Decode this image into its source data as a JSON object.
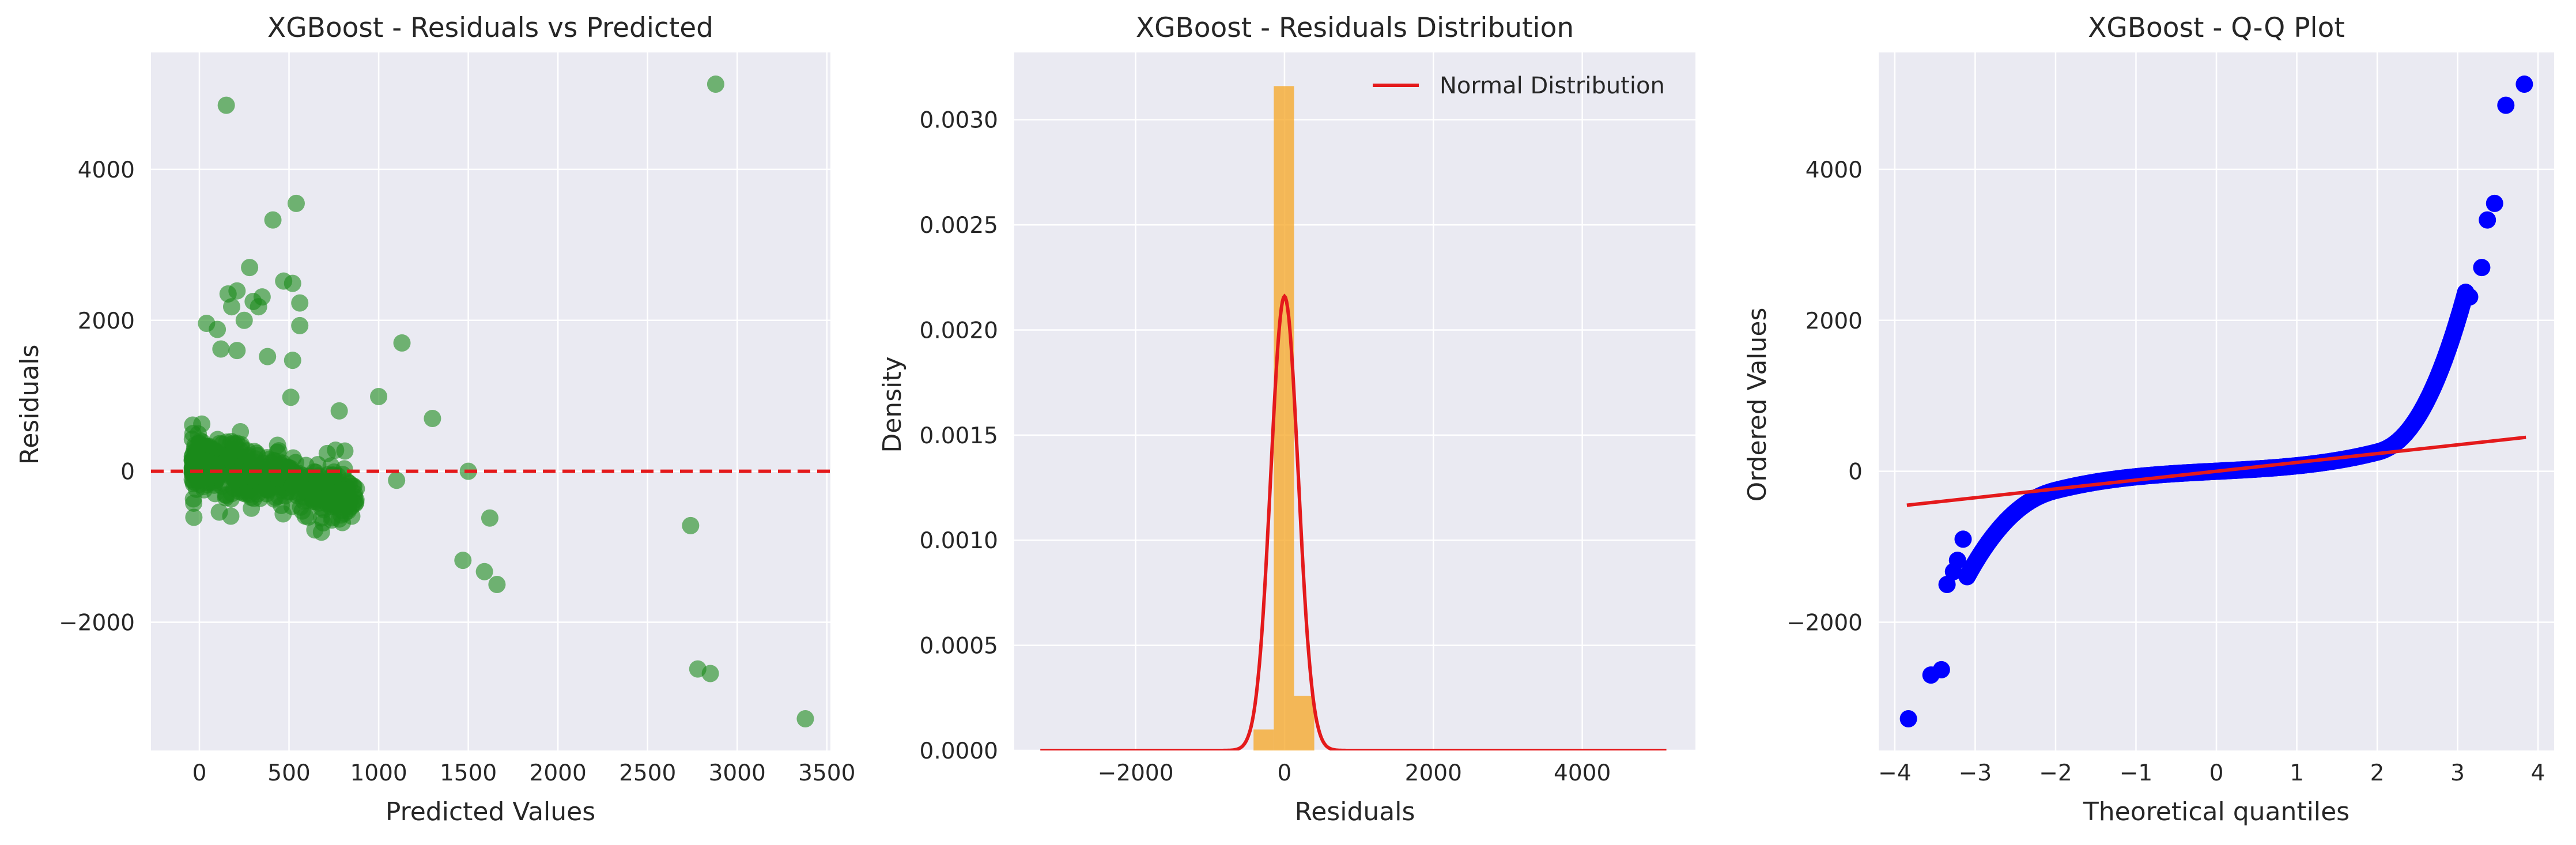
{
  "chart_data": [
    {
      "type": "scatter",
      "title": "XGBoost - Residuals vs Predicted",
      "xlabel": "Predicted Values",
      "ylabel": "Residuals",
      "xlim": [
        -270,
        3520
      ],
      "ylim": [
        -3700,
        5550
      ],
      "xticks": [
        0,
        500,
        1000,
        1500,
        2000,
        2500,
        3000,
        3500
      ],
      "yticks": [
        -2000,
        0,
        2000,
        4000
      ],
      "grid": true,
      "colors": {
        "points": "#1a8a1a",
        "reference_line": "#e41a1c",
        "background": "#eaeaf2"
      },
      "reference_line": {
        "y": 0,
        "style": "dashed"
      },
      "outliers": [
        {
          "x": 150,
          "y": 4850
        },
        {
          "x": 2880,
          "y": 5130
        },
        {
          "x": 540,
          "y": 3550
        },
        {
          "x": 410,
          "y": 3330
        },
        {
          "x": 280,
          "y": 2700
        },
        {
          "x": 470,
          "y": 2520
        },
        {
          "x": 520,
          "y": 2490
        },
        {
          "x": 210,
          "y": 2390
        },
        {
          "x": 350,
          "y": 2310
        },
        {
          "x": 160,
          "y": 2350
        },
        {
          "x": 300,
          "y": 2250
        },
        {
          "x": 560,
          "y": 2230
        },
        {
          "x": 330,
          "y": 2180
        },
        {
          "x": 180,
          "y": 2180
        },
        {
          "x": 250,
          "y": 2000
        },
        {
          "x": 40,
          "y": 1960
        },
        {
          "x": 560,
          "y": 1930
        },
        {
          "x": 100,
          "y": 1880
        },
        {
          "x": 1130,
          "y": 1700
        },
        {
          "x": 210,
          "y": 1600
        },
        {
          "x": 520,
          "y": 1470
        },
        {
          "x": 380,
          "y": 1520
        },
        {
          "x": 120,
          "y": 1620
        },
        {
          "x": 1000,
          "y": 990
        },
        {
          "x": 510,
          "y": 980
        },
        {
          "x": 1300,
          "y": 700
        },
        {
          "x": 780,
          "y": 800
        },
        {
          "x": 1500,
          "y": 0
        },
        {
          "x": 1100,
          "y": -120
        },
        {
          "x": 1620,
          "y": -620
        },
        {
          "x": 1470,
          "y": -1180
        },
        {
          "x": 1590,
          "y": -1330
        },
        {
          "x": 1660,
          "y": -1500
        },
        {
          "x": 2740,
          "y": -720
        },
        {
          "x": 2780,
          "y": -2620
        },
        {
          "x": 2850,
          "y": -2680
        },
        {
          "x": 3380,
          "y": -3280
        }
      ],
      "cluster_note": "dense cloud of several hundred points between x≈-50 and x≈900, y≈-900 to 1300, residuals decreasing with predicted value"
    },
    {
      "type": "histogram",
      "title": "XGBoost - Residuals Distribution",
      "xlabel": "Residuals",
      "ylabel": "Density",
      "xlim": [
        -3630,
        5520
      ],
      "ylim": [
        0,
        0.00332
      ],
      "xticks": [
        -2000,
        0,
        2000,
        4000
      ],
      "yticks": [
        0,
        0.0005,
        0.001,
        0.0015,
        0.002,
        0.0025,
        0.003
      ],
      "ytick_labels": [
        "0.0000",
        "0.0005",
        "0.0010",
        "0.0015",
        "0.0020",
        "0.0025",
        "0.0030"
      ],
      "grid": true,
      "legend": {
        "position": "top-right",
        "entries": [
          "Normal Distribution"
        ]
      },
      "colors": {
        "bars": "#f5a623",
        "curve": "#e41a1c",
        "background": "#eaeaf2"
      },
      "bins": [
        {
          "x0": -416,
          "x1": -144,
          "density": 0.0001
        },
        {
          "x0": -144,
          "x1": 128,
          "density": 0.00316
        },
        {
          "x0": 128,
          "x1": 400,
          "density": 0.00026
        }
      ],
      "normal_curve": {
        "mean": 0,
        "std": 185,
        "x_range": [
          -3280,
          5130
        ],
        "peak": 0.00216
      }
    },
    {
      "type": "scatter",
      "title": "XGBoost - Q-Q Plot",
      "xlabel": "Theoretical quantiles",
      "ylabel": "Ordered Values",
      "xlim": [
        -4.2,
        4.2
      ],
      "ylim": [
        -3700,
        5550
      ],
      "xticks": [
        -4,
        -3,
        -2,
        -1,
        0,
        1,
        2,
        3,
        4
      ],
      "xtick_labels": [
        "−4",
        "−3",
        "−2",
        "−1",
        "0",
        "1",
        "2",
        "3",
        "4"
      ],
      "yticks": [
        -2000,
        0,
        2000,
        4000
      ],
      "grid": true,
      "colors": {
        "points": "#0000ff",
        "fit_line": "#e41a1c",
        "background": "#eaeaf2"
      },
      "fit_line": {
        "x": [
          -3.85,
          3.85
        ],
        "y": [
          -450,
          450
        ]
      },
      "tail_points": [
        {
          "x": -3.83,
          "y": -3280
        },
        {
          "x": -3.55,
          "y": -2700
        },
        {
          "x": -3.42,
          "y": -2630
        },
        {
          "x": -3.35,
          "y": -1500
        },
        {
          "x": -3.27,
          "y": -1330
        },
        {
          "x": -3.22,
          "y": -1180
        },
        {
          "x": -3.15,
          "y": -900
        },
        {
          "x": 3.15,
          "y": 2310
        },
        {
          "x": 3.3,
          "y": 2700
        },
        {
          "x": 3.37,
          "y": 3330
        },
        {
          "x": 3.46,
          "y": 3550
        },
        {
          "x": 3.6,
          "y": 4850
        },
        {
          "x": 3.83,
          "y": 5130
        }
      ]
    }
  ]
}
